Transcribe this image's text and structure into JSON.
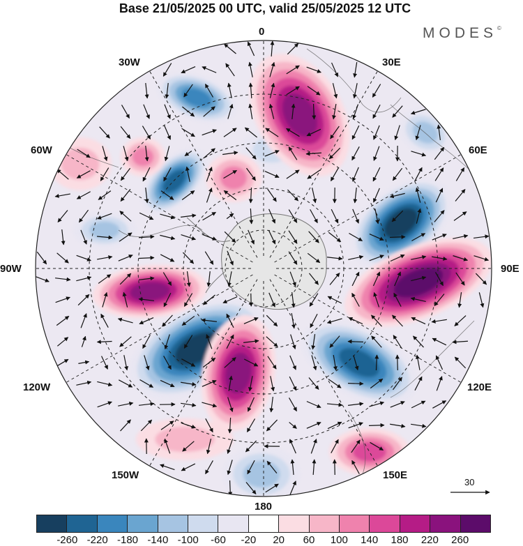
{
  "title": "Base 21/05/2025 00 UTC, valid 25/05/2025 12 UTC",
  "brand": "MODES",
  "brand_mark": "©",
  "longitude_labels": {
    "lon_0": "0",
    "lon_30e": "30E",
    "lon_60e": "60E",
    "lon_90e": "90E",
    "lon_120e": "120E",
    "lon_150e": "150E",
    "lon_180": "180",
    "lon_150w": "150W",
    "lon_120w": "120W",
    "lon_90w": "90W",
    "lon_60w": "60W",
    "lon_30w": "30W"
  },
  "vector_reference": "30",
  "colorbar": {
    "ticks": [
      "-260",
      "-220",
      "-180",
      "-140",
      "-100",
      "-60",
      "-20",
      "20",
      "60",
      "100",
      "140",
      "180",
      "220",
      "260"
    ],
    "colors": [
      "#173f5f",
      "#1f6493",
      "#3a86bd",
      "#6aa5d0",
      "#a6c4e2",
      "#cfdbee",
      "#e8e6f2",
      "#ffffff",
      "#fbdde3",
      "#f7b6c8",
      "#ef82ad",
      "#dc4899",
      "#b51c86",
      "#8a127d",
      "#5c0c6a"
    ]
  },
  "anomaly_features": [
    {
      "sign": "negative",
      "level": -260
    },
    {
      "sign": "negative",
      "level": -260
    },
    {
      "sign": "negative",
      "level": -220
    },
    {
      "sign": "negative",
      "level": -220
    },
    {
      "sign": "negative",
      "level": -180
    },
    {
      "sign": "negative",
      "level": -100
    },
    {
      "sign": "negative",
      "level": -100
    },
    {
      "sign": "negative",
      "level": -100
    },
    {
      "sign": "negative",
      "level": -60
    },
    {
      "sign": "positive",
      "level": 260
    },
    {
      "sign": "positive",
      "level": 220
    },
    {
      "sign": "positive",
      "level": 220
    },
    {
      "sign": "positive",
      "level": 220
    },
    {
      "sign": "positive",
      "level": 140
    },
    {
      "sign": "positive",
      "level": 100
    },
    {
      "sign": "positive",
      "level": 100
    },
    {
      "sign": "positive",
      "level": 60
    },
    {
      "sign": "positive",
      "level": 60
    }
  ]
}
